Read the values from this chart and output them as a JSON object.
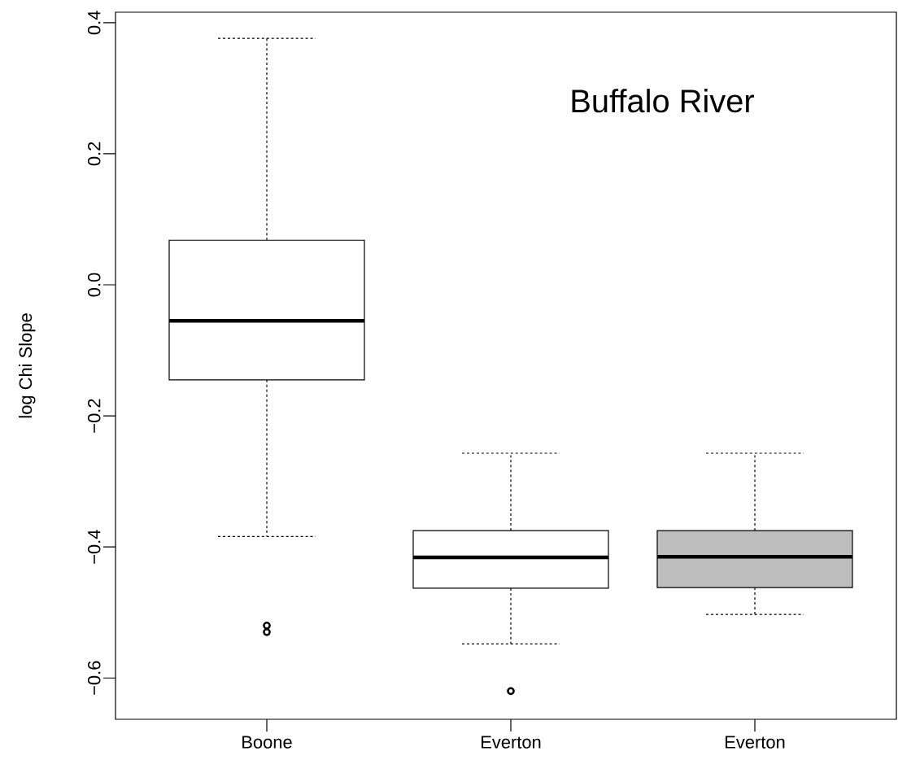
{
  "chart_data": {
    "type": "box",
    "title": "Buffalo River",
    "ylabel": "log Chi Slope",
    "categories": [
      "Boone",
      "Everton",
      "Everton"
    ],
    "boxes": [
      {
        "low": -0.384,
        "q1": -0.145,
        "median": -0.055,
        "q3": 0.068,
        "high": 0.376,
        "outliers": [
          -0.52,
          -0.53
        ]
      },
      {
        "low": -0.548,
        "q1": -0.463,
        "median": -0.416,
        "q3": -0.375,
        "high": -0.257,
        "outliers": [
          -0.62
        ]
      },
      {
        "low": -0.503,
        "q1": -0.462,
        "median": -0.415,
        "q3": -0.375,
        "high": -0.257
      }
    ],
    "colors": [
      "#ffffff",
      "#ffffff",
      "#bebebe"
    ],
    "marker": "circle",
    "ylim": [
      -0.663,
      0.416
    ],
    "yticks": [
      {
        "value": -0.6,
        "label": "−0.6"
      },
      {
        "value": -0.4,
        "label": "−0.4"
      },
      {
        "value": -0.2,
        "label": "−0.2"
      },
      {
        "value": 0,
        "label": "0.0"
      },
      {
        "value": 0.2,
        "label": "0.2"
      },
      {
        "value": 0.4,
        "label": "0.4"
      }
    ]
  }
}
